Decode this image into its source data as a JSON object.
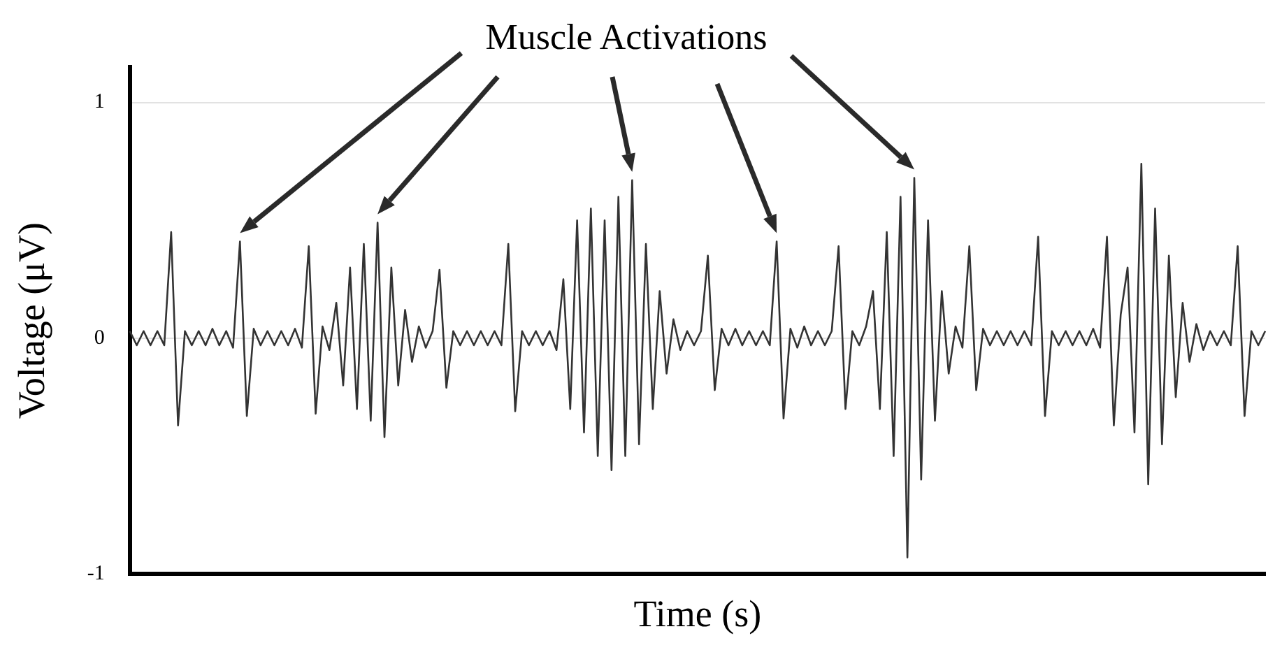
{
  "chart_data": {
    "type": "line",
    "xlabel": "Time (s)",
    "ylabel": "Voltage (μV)",
    "annotations": [
      "Muscle Activations"
    ],
    "categories": [
      null,
      null,
      null,
      null,
      null,
      null,
      null,
      null,
      null,
      null,
      null,
      null,
      null,
      null,
      null,
      null,
      null,
      null,
      null,
      null,
      null,
      null,
      null,
      null,
      null,
      null,
      null,
      null,
      null,
      null,
      null,
      null,
      null,
      null,
      null,
      null,
      null,
      null,
      null,
      null,
      null,
      null,
      null,
      null,
      null,
      null,
      null,
      null,
      null,
      null,
      null,
      null,
      null,
      null,
      null,
      null,
      null,
      null,
      null,
      null,
      null,
      null,
      null,
      null,
      null,
      null,
      null,
      null,
      null,
      null,
      null,
      null,
      null,
      null,
      null,
      null,
      null,
      null,
      null,
      null,
      null,
      null,
      null,
      null,
      null,
      null,
      null,
      null,
      null,
      null,
      null,
      null,
      null,
      null,
      null,
      null,
      null,
      null,
      null,
      null,
      null,
      null,
      null,
      null,
      null,
      null,
      null,
      null,
      null,
      null,
      null,
      null,
      null,
      null,
      null,
      null,
      null,
      null,
      null,
      null,
      null,
      null,
      null,
      null,
      null,
      null,
      null,
      null,
      null,
      null,
      null,
      null,
      null,
      null,
      null,
      null,
      null,
      null,
      null,
      null,
      null,
      null,
      null,
      null,
      null,
      null,
      null,
      null,
      null,
      null,
      null,
      null,
      null,
      null,
      null,
      null,
      null,
      null,
      null,
      null,
      null,
      null,
      null,
      null,
      null,
      null
    ],
    "series": [
      {
        "color": "#333333",
        "values": [
          0.03,
          -0.03,
          0.03,
          -0.03,
          0.03,
          -0.03,
          0.45,
          -0.37,
          0.03,
          -0.03,
          0.03,
          -0.03,
          0.04,
          -0.03,
          0.03,
          -0.04,
          0.41,
          -0.33,
          0.04,
          -0.03,
          0.03,
          -0.03,
          0.03,
          -0.03,
          0.04,
          -0.04,
          0.39,
          -0.32,
          0.05,
          -0.05,
          0.15,
          -0.2,
          0.3,
          -0.3,
          0.4,
          -0.35,
          0.49,
          -0.42,
          0.3,
          -0.2,
          0.12,
          -0.1,
          0.05,
          -0.04,
          0.03,
          0.29,
          -0.21,
          0.03,
          -0.03,
          0.03,
          -0.03,
          0.03,
          -0.03,
          0.03,
          -0.03,
          0.4,
          -0.31,
          0.03,
          -0.03,
          0.03,
          -0.03,
          0.03,
          -0.05,
          0.25,
          -0.3,
          0.5,
          -0.4,
          0.55,
          -0.5,
          0.5,
          -0.56,
          0.6,
          -0.5,
          0.67,
          -0.45,
          0.4,
          -0.3,
          0.2,
          -0.15,
          0.08,
          -0.05,
          0.03,
          -0.03,
          0.03,
          0.35,
          -0.22,
          0.04,
          -0.03,
          0.04,
          -0.03,
          0.03,
          -0.03,
          0.03,
          -0.03,
          0.41,
          -0.34,
          0.04,
          -0.04,
          0.05,
          -0.03,
          0.03,
          -0.03,
          0.03,
          0.39,
          -0.3,
          0.03,
          -0.03,
          0.05,
          0.2,
          -0.3,
          0.45,
          -0.5,
          0.6,
          -0.93,
          0.68,
          -0.6,
          0.5,
          -0.35,
          0.2,
          -0.15,
          0.05,
          -0.04,
          0.39,
          -0.22,
          0.04,
          -0.03,
          0.03,
          -0.03,
          0.03,
          -0.03,
          0.03,
          -0.03,
          0.43,
          -0.33,
          0.03,
          -0.03,
          0.03,
          -0.03,
          0.03,
          -0.03,
          0.04,
          -0.04,
          0.43,
          -0.37,
          0.1,
          0.3,
          -0.4,
          0.74,
          -0.62,
          0.55,
          -0.45,
          0.35,
          -0.25,
          0.15,
          -0.1,
          0.06,
          -0.05,
          0.03,
          -0.03,
          0.03,
          -0.03,
          0.39,
          -0.33,
          0.03,
          -0.03,
          0.03
        ]
      }
    ],
    "ylim": [
      -1,
      1.15
    ],
    "yticks": [
      -1,
      0,
      1
    ],
    "grid": "y",
    "legend": false,
    "tick_labels": "y",
    "marker": "none",
    "line_style": "solid"
  }
}
